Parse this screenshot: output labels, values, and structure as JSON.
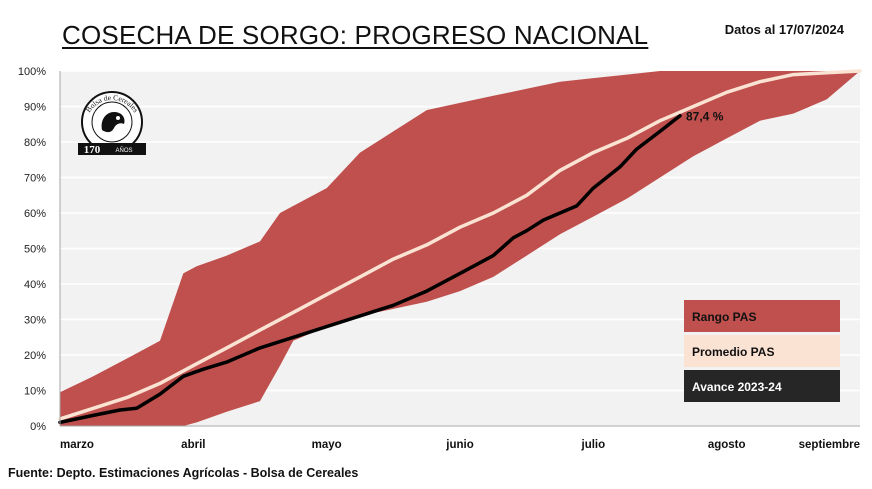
{
  "header": {
    "title": "COSECHA DE SORGO: PROGRESO NACIONAL",
    "date": "Datos al 17/07/2024"
  },
  "footer": {
    "source": "Fuente: Depto. Estimaciones Agrícolas - Bolsa de Cereales"
  },
  "logo": {
    "text_arc": "Bolsa de Cereales",
    "years": "170",
    "tagline": "AÑOS"
  },
  "colors": {
    "range": "#c0504d",
    "average": "#fbe3d4",
    "current": "#000000",
    "plot_bg": "#f2f2f2",
    "grid": "#ffffff",
    "legend_dark": "#262626"
  },
  "chart_data": {
    "type": "area",
    "title": "COSECHA DE SORGO: PROGRESO NACIONAL",
    "xlabel": "",
    "ylabel": "",
    "xlim": [
      0,
      24
    ],
    "ylim": [
      0,
      100
    ],
    "y_ticks": [
      "0%",
      "10%",
      "20%",
      "30%",
      "40%",
      "50%",
      "60%",
      "70%",
      "80%",
      "90%",
      "100%"
    ],
    "x_ticks": [
      {
        "label": "marzo",
        "x": 0
      },
      {
        "label": "abril",
        "x": 4
      },
      {
        "label": "mayo",
        "x": 8
      },
      {
        "label": "junio",
        "x": 12
      },
      {
        "label": "julio",
        "x": 16
      },
      {
        "label": "agosto",
        "x": 20
      },
      {
        "label": "septiembre",
        "x": 24
      }
    ],
    "series": [
      {
        "name": "Rango PAS",
        "kind": "band",
        "x": [
          0,
          1,
          2,
          3,
          3.7,
          4.1,
          5,
          6,
          6.6,
          7,
          8,
          9,
          10,
          11,
          12,
          13,
          14,
          15,
          16,
          17,
          18,
          19,
          20,
          21,
          22,
          23,
          24
        ],
        "upper": [
          9.5,
          14,
          19,
          24,
          43,
          45,
          48,
          52,
          60,
          62,
          67,
          77,
          83,
          89,
          91,
          93,
          95,
          97,
          98,
          99,
          100,
          100,
          100,
          100,
          100,
          100,
          100
        ],
        "lower": [
          0,
          0,
          0,
          0,
          0,
          1,
          4,
          7,
          17,
          24,
          28,
          31,
          33,
          35,
          38,
          42,
          48,
          54,
          59,
          64,
          70,
          76,
          81,
          86,
          88,
          92,
          100
        ]
      },
      {
        "name": "Promedio PAS",
        "kind": "line",
        "x": [
          0,
          1,
          2,
          3,
          4,
          5,
          6,
          7,
          8,
          9,
          10,
          11,
          12,
          13,
          14,
          15,
          16,
          17,
          18,
          19,
          20,
          21,
          22,
          23,
          24
        ],
        "values": [
          2,
          5,
          8,
          12,
          17,
          22,
          27,
          32,
          37,
          42,
          47,
          51,
          56,
          60,
          65,
          72,
          77,
          81,
          86,
          90,
          94,
          97,
          99,
          99.5,
          100
        ]
      },
      {
        "name": "Avance 2023-24",
        "kind": "line",
        "x": [
          0,
          1,
          1.8,
          2.3,
          3,
          3.7,
          4.3,
          5,
          6,
          7,
          8,
          9,
          10,
          11,
          12,
          13,
          13.6,
          14,
          14.5,
          15,
          15.5,
          16,
          16.8,
          17.3,
          18,
          18.6
        ],
        "values": [
          1,
          3,
          4.5,
          5,
          9,
          14,
          16,
          18,
          22,
          25,
          28,
          31,
          34,
          38,
          43,
          48,
          53,
          55,
          58,
          60,
          62,
          67,
          73,
          78,
          83,
          87.4
        ]
      }
    ],
    "annotations": [
      {
        "text": "87,4 %",
        "x": 18.6,
        "y": 87.4
      }
    ],
    "legend": {
      "position": "bottom-right",
      "items": [
        "Rango PAS",
        "Promedio PAS",
        "Avance 2023-24"
      ]
    }
  }
}
